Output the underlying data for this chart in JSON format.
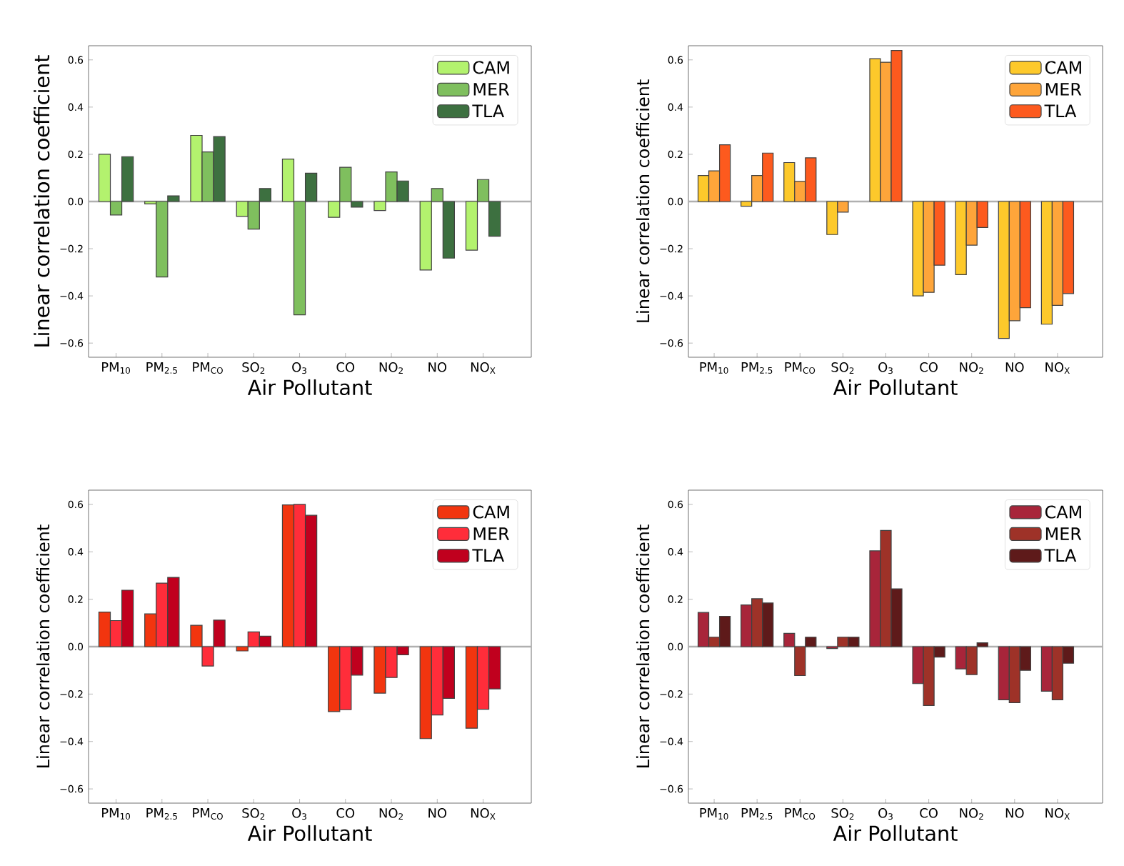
{
  "chart_data": [
    {
      "type": "bar",
      "ylabel": "Linear correlation coefficient",
      "xlabel": "Air Pollutant",
      "categories": [
        "PM$_{10}$",
        "PM$_{2.5}$",
        "PM$_{CO}$",
        "SO$_{2}$",
        "O$_{3}$",
        "CO",
        "NO$_{2}$",
        "NO",
        "NO$_{X}$"
      ],
      "series": [
        {
          "name": "CAM",
          "color": "#b3f26e",
          "values": [
            0.2,
            -0.01,
            0.28,
            -0.063,
            0.18,
            -0.067,
            -0.038,
            -0.29,
            -0.206
          ]
        },
        {
          "name": "MER",
          "color": "#7fbf5e",
          "values": [
            -0.057,
            -0.32,
            0.21,
            -0.117,
            -0.48,
            0.145,
            0.125,
            0.055,
            0.093
          ]
        },
        {
          "name": "TLA",
          "color": "#3d7040",
          "values": [
            0.19,
            0.024,
            0.275,
            0.055,
            0.12,
            -0.024,
            0.087,
            -0.24,
            -0.147
          ]
        }
      ],
      "ylim": [
        -0.66,
        0.66
      ],
      "yticks": [
        {
          "value": -0.6,
          "label": "−0.6"
        },
        {
          "value": -0.4,
          "label": "−0.4"
        },
        {
          "value": -0.2,
          "label": "−0.2"
        },
        {
          "value": 0,
          "label": "0.0"
        },
        0.2,
        0.4,
        0.6
      ],
      "ref_lines": [
        {
          "axis": "y",
          "value": 0,
          "color": "#b0b0b0"
        }
      ],
      "legend": "top right",
      "grid": false
    },
    {
      "type": "bar",
      "ylabel": "Linear correlation coefficient",
      "xlabel": "Air Pollutant",
      "categories": [
        "PM$_{10}$",
        "PM$_{2.5}$",
        "PM$_{CO}$",
        "SO$_{2}$",
        "O$_{3}$",
        "CO",
        "NO$_{2}$",
        "NO",
        "NO$_{X}$"
      ],
      "series": [
        {
          "name": "CAM",
          "color": "#fdc92b",
          "values": [
            0.11,
            -0.02,
            0.165,
            -0.14,
            0.605,
            -0.4,
            -0.31,
            -0.58,
            -0.52
          ]
        },
        {
          "name": "MER",
          "color": "#fea53a",
          "values": [
            0.13,
            0.11,
            0.085,
            -0.045,
            0.59,
            -0.385,
            -0.185,
            -0.505,
            -0.44
          ]
        },
        {
          "name": "TLA",
          "color": "#fd5a1e",
          "values": [
            0.24,
            0.205,
            0.185,
            null,
            0.64,
            -0.27,
            -0.11,
            -0.45,
            -0.39
          ]
        }
      ],
      "ylim": [
        -0.66,
        0.66
      ],
      "yticks": [
        {
          "value": -0.6,
          "label": "−0.6"
        },
        {
          "value": -0.4,
          "label": "−0.4"
        },
        {
          "value": -0.2,
          "label": "−0.2"
        },
        {
          "value": 0,
          "label": "0.0"
        },
        0.2,
        0.4,
        0.6
      ],
      "ref_lines": [
        {
          "axis": "y",
          "value": 0,
          "color": "#b0b0b0"
        }
      ],
      "legend": "top right",
      "grid": false
    },
    {
      "type": "bar",
      "ylabel": "Linear correlation coefficient",
      "xlabel": "Air Pollutant",
      "categories": [
        "PM$_{10}$",
        "PM$_{2.5}$",
        "PM$_{CO}$",
        "SO$_{2}$",
        "O$_{3}$",
        "CO",
        "NO$_{2}$",
        "NO",
        "NO$_{X}$"
      ],
      "series": [
        {
          "name": "CAM",
          "color": "#f2350f",
          "values": [
            0.146,
            0.138,
            0.09,
            -0.018,
            0.598,
            -0.274,
            -0.196,
            -0.388,
            -0.344
          ]
        },
        {
          "name": "MER",
          "color": "#ff2d3a",
          "values": [
            0.11,
            0.268,
            -0.082,
            0.062,
            0.6,
            -0.266,
            -0.13,
            -0.288,
            -0.264
          ]
        },
        {
          "name": "TLA",
          "color": "#c0001e",
          "values": [
            0.238,
            0.292,
            0.112,
            0.044,
            0.554,
            -0.12,
            -0.034,
            -0.218,
            -0.178
          ]
        }
      ],
      "ylim": [
        -0.66,
        0.66
      ],
      "yticks": [
        {
          "value": -0.6,
          "label": "−0.6"
        },
        {
          "value": -0.4,
          "label": "−0.4"
        },
        {
          "value": -0.2,
          "label": "−0.2"
        },
        {
          "value": 0,
          "label": "0.0"
        },
        0.2,
        0.4,
        0.6
      ],
      "ref_lines": [
        {
          "axis": "y",
          "value": 0,
          "color": "#b0b0b0"
        }
      ],
      "legend": "top right",
      "grid": false
    },
    {
      "type": "bar",
      "ylabel": "Linear correlation coefficient",
      "xlabel": "Air Pollutant",
      "categories": [
        "PM$_{10}$",
        "PM$_{2.5}$",
        "PM$_{CO}$",
        "SO$_{2}$",
        "O$_{3}$",
        "CO",
        "NO$_{2}$",
        "NO",
        "NO$_{X}$"
      ],
      "series": [
        {
          "name": "CAM",
          "color": "#a8253a",
          "values": [
            0.144,
            0.176,
            0.056,
            -0.008,
            0.404,
            -0.156,
            -0.094,
            -0.224,
            -0.188
          ]
        },
        {
          "name": "MER",
          "color": "#9e3228",
          "values": [
            0.04,
            0.202,
            -0.122,
            0.04,
            0.49,
            -0.248,
            -0.118,
            -0.236,
            -0.224
          ]
        },
        {
          "name": "TLA",
          "color": "#5e1a1a",
          "values": [
            0.128,
            0.184,
            0.04,
            0.04,
            0.244,
            -0.044,
            0.016,
            -0.1,
            -0.07
          ]
        }
      ],
      "ylim": [
        -0.66,
        0.66
      ],
      "yticks": [
        {
          "value": -0.6,
          "label": "−0.6"
        },
        {
          "value": -0.4,
          "label": "−0.4"
        },
        {
          "value": -0.2,
          "label": "−0.2"
        },
        {
          "value": 0,
          "label": "0.0"
        },
        0.2,
        0.4,
        0.6
      ],
      "ref_lines": [
        {
          "axis": "y",
          "value": 0,
          "color": "#b0b0b0"
        }
      ],
      "legend": "top right",
      "grid": false
    }
  ]
}
